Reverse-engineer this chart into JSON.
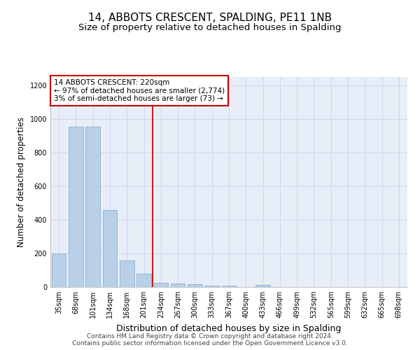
{
  "title": "14, ABBOTS CRESCENT, SPALDING, PE11 1NB",
  "subtitle": "Size of property relative to detached houses in Spalding",
  "xlabel": "Distribution of detached houses by size in Spalding",
  "ylabel": "Number of detached properties",
  "categories": [
    "35sqm",
    "68sqm",
    "101sqm",
    "134sqm",
    "168sqm",
    "201sqm",
    "234sqm",
    "267sqm",
    "300sqm",
    "333sqm",
    "367sqm",
    "400sqm",
    "433sqm",
    "466sqm",
    "499sqm",
    "532sqm",
    "565sqm",
    "599sqm",
    "632sqm",
    "665sqm",
    "698sqm"
  ],
  "values": [
    200,
    955,
    955,
    460,
    160,
    80,
    25,
    20,
    15,
    10,
    8,
    0,
    14,
    0,
    0,
    0,
    0,
    0,
    0,
    0,
    0
  ],
  "bar_color": "#b8d0e8",
  "bar_edge_color": "#8ab0d0",
  "vline_x": 5.5,
  "vline_color": "#cc0000",
  "annotation_box_text": "14 ABBOTS CRESCENT: 220sqm\n← 97% of detached houses are smaller (2,774)\n3% of semi-detached houses are larger (73) →",
  "annotation_box_color": "#cc0000",
  "ylim": [
    0,
    1250
  ],
  "yticks": [
    0,
    200,
    400,
    600,
    800,
    1000,
    1200
  ],
  "grid_color": "#ccd8ec",
  "background_color": "#e8eef8",
  "footer_line1": "Contains HM Land Registry data © Crown copyright and database right 2024.",
  "footer_line2": "Contains public sector information licensed under the Open Government Licence v3.0.",
  "title_fontsize": 11,
  "subtitle_fontsize": 9.5,
  "xlabel_fontsize": 9,
  "ylabel_fontsize": 8.5,
  "tick_fontsize": 7,
  "footer_fontsize": 6.5,
  "annotation_fontsize": 7.5
}
